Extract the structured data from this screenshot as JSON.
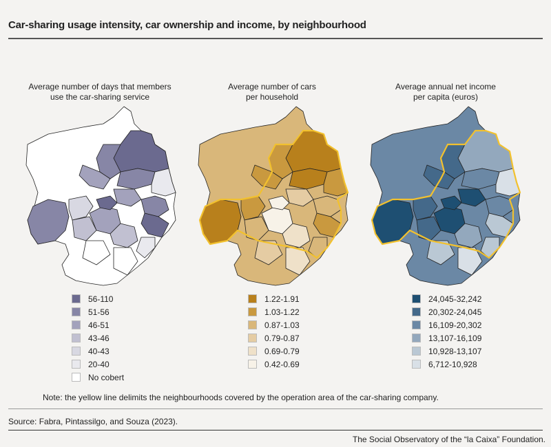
{
  "title": "Car-sharing usage intensity, car ownership and income, by neighbourhood",
  "maps": [
    {
      "title_lines": [
        "Average number of days that members",
        "use the car-sharing service"
      ],
      "legend": [
        {
          "label": "56-110",
          "color": "#6b6a8f"
        },
        {
          "label": "51-56",
          "color": "#8786a6"
        },
        {
          "label": "46-51",
          "color": "#a3a2bc"
        },
        {
          "label": "43-46",
          "color": "#c1c0d1"
        },
        {
          "label": "40-43",
          "color": "#d8d8e2"
        },
        {
          "label": "20-40",
          "color": "#e9e9ee"
        },
        {
          "label": "No cobert",
          "color": "#ffffff"
        }
      ]
    },
    {
      "title_lines": [
        "Average number of cars",
        "per household"
      ],
      "legend": [
        {
          "label": "1.22-1.91",
          "color": "#b8801c"
        },
        {
          "label": "1.03-1.22",
          "color": "#c9993f"
        },
        {
          "label": "0.87-1.03",
          "color": "#d9b77a"
        },
        {
          "label": "0.79-0.87",
          "color": "#e5cca3"
        },
        {
          "label": "0.69-0.79",
          "color": "#efe1c9"
        },
        {
          "label": "0.42-0.69",
          "color": "#f7f2e8"
        }
      ]
    },
    {
      "title_lines": [
        "Average annual net income",
        "per capita (euros)"
      ],
      "legend": [
        {
          "label": "24,045-32,242",
          "color": "#1e4f72"
        },
        {
          "label": "20,302-24,045",
          "color": "#44698a"
        },
        {
          "label": "16,109-20,302",
          "color": "#6b88a5"
        },
        {
          "label": "13,107-16,109",
          "color": "#93a8bd"
        },
        {
          "label": "10,928-13,107",
          "color": "#bac8d4"
        },
        {
          "label": "6,712-10,928",
          "color": "#d9e0e7"
        }
      ]
    }
  ],
  "operation_area_color": "#f2c12e",
  "note": "Note: the yellow line delimits the neighbourhoods covered by the operation area of the car-sharing company.",
  "source": "Source: Fabra, Pintassilgo, and Souza (2023).",
  "credit": "The Social Observatory of the “la Caixa” Foundation."
}
